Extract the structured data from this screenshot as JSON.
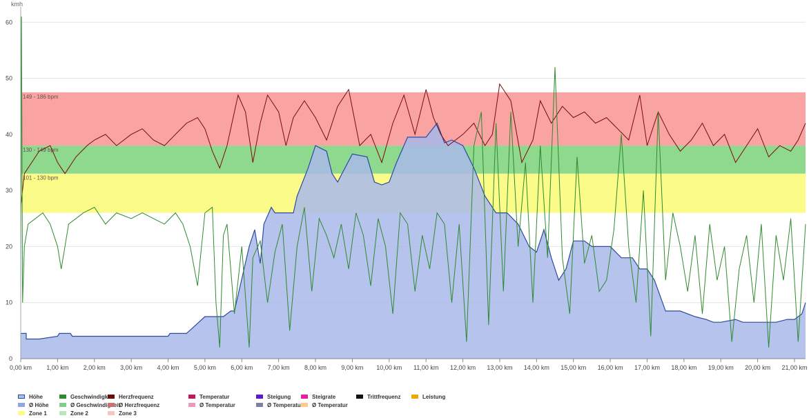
{
  "chart_data": {
    "type": "area",
    "ylabel_unit": "kmh",
    "ylim": [
      0,
      62
    ],
    "xlim": [
      0,
      21.3
    ],
    "y_ticks": [
      "0",
      "10",
      "20",
      "30",
      "40",
      "50",
      "60"
    ],
    "x_ticks": [
      "0,00 km",
      "1,00 km",
      "2,00 km",
      "3,00 km",
      "4,00 km",
      "5,00 km",
      "6,00 km",
      "7,00 km",
      "8,00 km",
      "9,00 km",
      "10,00 km",
      "11,00 km",
      "12,00 km",
      "13,00 km",
      "14,00 km",
      "15,00 km",
      "16,00 km",
      "17,00 km",
      "18,00 km",
      "19,00 km",
      "20,00 km",
      "21,00 km"
    ],
    "zones": [
      {
        "label": "101 - 130 bpm",
        "from": 26,
        "to": 33,
        "color": "#fbfb8a"
      },
      {
        "label": "130 - 149 bpm",
        "from": 33,
        "to": 38,
        "color": "#8fd98f"
      },
      {
        "label": "149 - 186 bpm",
        "from": 38,
        "to": 47.5,
        "color": "#f9a3a3"
      }
    ],
    "series": [
      {
        "name": "Höhe",
        "kind": "area",
        "color": "#a8b8ea",
        "stroke": "#2c4aa0",
        "x": [
          0,
          0.15,
          0.15,
          0.5,
          1.0,
          1.05,
          1.35,
          1.4,
          2.0,
          3.0,
          4.0,
          4.05,
          4.5,
          4.75,
          5.0,
          5.5,
          5.7,
          5.8,
          6.2,
          6.35,
          6.5,
          6.6,
          6.8,
          6.9,
          7.2,
          7.4,
          7.5,
          7.8,
          8.0,
          8.3,
          8.45,
          8.6,
          8.8,
          9.0,
          9.4,
          9.6,
          9.8,
          10.0,
          10.2,
          10.5,
          10.8,
          11.0,
          11.3,
          11.5,
          11.7,
          12.0,
          12.3,
          12.6,
          12.9,
          13.2,
          13.5,
          13.8,
          14.0,
          14.2,
          14.4,
          14.6,
          14.8,
          15.0,
          15.3,
          15.5,
          15.6,
          16.0,
          16.3,
          16.6,
          16.8,
          17.0,
          17.2,
          17.5,
          17.7,
          17.9,
          18.3,
          18.6,
          18.8,
          19.0,
          19.4,
          19.6,
          19.8,
          20.0,
          20.5,
          20.8,
          21.0,
          21.2,
          21.3
        ],
        "y": [
          4.5,
          4.5,
          3.5,
          3.5,
          4,
          4.5,
          4.5,
          4,
          4,
          4,
          4,
          4.5,
          4.5,
          6,
          7.5,
          7.5,
          8.5,
          8.5,
          20,
          23,
          17,
          24,
          27,
          26,
          26,
          26,
          29,
          34,
          38,
          37,
          33,
          31.5,
          34,
          36.5,
          36,
          31.5,
          31,
          31.5,
          35,
          39.5,
          39.5,
          39.5,
          42,
          38.5,
          39,
          38,
          34,
          29,
          26,
          26,
          24,
          20,
          19,
          23,
          18,
          14,
          16,
          21,
          21,
          20,
          20,
          20,
          18,
          18,
          16,
          16,
          14,
          8.5,
          8.5,
          8.5,
          7.5,
          7,
          6.5,
          6.5,
          7,
          6.5,
          6.5,
          6.5,
          6.5,
          7,
          7,
          8,
          10
        ]
      },
      {
        "name": "Herzfrequenz",
        "kind": "line",
        "color": "#7a0a0a",
        "x": [
          0,
          0.1,
          0.3,
          0.5,
          0.8,
          1.0,
          1.2,
          1.5,
          1.8,
          2.0,
          2.3,
          2.6,
          3.0,
          3.3,
          3.6,
          3.9,
          4.2,
          4.5,
          4.8,
          5.0,
          5.2,
          5.4,
          5.6,
          5.9,
          6.1,
          6.3,
          6.5,
          6.7,
          7.0,
          7.2,
          7.4,
          7.7,
          8.0,
          8.3,
          8.6,
          8.9,
          9.2,
          9.5,
          9.8,
          10.1,
          10.4,
          10.7,
          11.0,
          11.2,
          11.4,
          11.6,
          11.8,
          12.0,
          12.3,
          12.6,
          12.8,
          13.0,
          13.3,
          13.6,
          13.9,
          14.1,
          14.4,
          14.7,
          15.0,
          15.3,
          15.6,
          15.9,
          16.2,
          16.5,
          16.8,
          17.0,
          17.3,
          17.6,
          17.9,
          18.2,
          18.5,
          18.8,
          19.1,
          19.4,
          19.7,
          20.0,
          20.3,
          20.6,
          20.9,
          21.1,
          21.3
        ],
        "y": [
          27,
          33,
          35,
          37,
          38,
          35,
          33,
          36,
          38,
          39,
          40,
          38,
          40,
          41,
          39,
          38,
          40,
          42,
          43,
          41,
          37,
          34,
          38,
          47,
          44,
          35,
          42,
          47,
          44,
          38,
          43,
          46,
          43,
          39,
          45,
          48,
          38,
          40,
          35,
          42,
          47,
          40,
          48,
          43,
          40,
          38,
          39,
          40,
          42,
          38,
          40,
          49,
          46,
          35,
          39,
          46,
          42,
          45,
          43,
          44,
          42,
          43,
          41,
          39,
          47,
          38,
          44,
          40,
          37,
          39,
          42,
          38,
          40,
          35,
          38,
          41,
          36,
          38,
          37,
          39,
          42
        ]
      },
      {
        "name": "Geschwindigkeit",
        "kind": "line",
        "color": "#2f8a2f",
        "x": [
          0,
          0.02,
          0.05,
          0.1,
          0.2,
          0.4,
          0.6,
          0.8,
          1.0,
          1.1,
          1.2,
          1.3,
          1.5,
          1.7,
          2.0,
          2.3,
          2.6,
          3.0,
          3.3,
          3.6,
          3.9,
          4.2,
          4.4,
          4.6,
          4.8,
          5.0,
          5.2,
          5.3,
          5.4,
          5.5,
          5.6,
          5.8,
          6.0,
          6.2,
          6.3,
          6.5,
          6.7,
          6.9,
          7.1,
          7.3,
          7.5,
          7.7,
          7.9,
          8.1,
          8.3,
          8.5,
          8.7,
          8.9,
          9.1,
          9.3,
          9.5,
          9.7,
          9.9,
          10.1,
          10.3,
          10.5,
          10.7,
          10.9,
          11.1,
          11.3,
          11.5,
          11.7,
          11.9,
          12.1,
          12.3,
          12.5,
          12.7,
          12.9,
          13.1,
          13.3,
          13.5,
          13.7,
          13.9,
          14.1,
          14.3,
          14.5,
          14.7,
          14.9,
          15.1,
          15.3,
          15.5,
          15.7,
          15.9,
          16.1,
          16.3,
          16.5,
          16.7,
          16.9,
          17.1,
          17.3,
          17.5,
          17.7,
          17.9,
          18.1,
          18.3,
          18.5,
          18.7,
          18.9,
          19.1,
          19.3,
          19.5,
          19.7,
          19.9,
          20.1,
          20.3,
          20.5,
          20.7,
          20.9,
          21.1,
          21.3
        ],
        "y": [
          10,
          61,
          10,
          20,
          24,
          25,
          26,
          24,
          20,
          16,
          20,
          24,
          25,
          26,
          27,
          24,
          26,
          25,
          26,
          25,
          24,
          26,
          24,
          20,
          13,
          26,
          27,
          10,
          2,
          22,
          24,
          8,
          20,
          2,
          18,
          21,
          10,
          19,
          24,
          5,
          20,
          27,
          12,
          25,
          22,
          18,
          24,
          16,
          26,
          22,
          13,
          25,
          20,
          8,
          26,
          24,
          12,
          22,
          16,
          26,
          24,
          10,
          24,
          3,
          38,
          44,
          6,
          42,
          12,
          44,
          20,
          35,
          10,
          38,
          18,
          52,
          18,
          8,
          36,
          17,
          22,
          12,
          14,
          23,
          40,
          20,
          10,
          30,
          4,
          44,
          14,
          26,
          20,
          12,
          22,
          8,
          24,
          14,
          20,
          3,
          16,
          22,
          10,
          24,
          2,
          22,
          14,
          25,
          3,
          24
        ]
      }
    ],
    "legend": [
      {
        "label": "Höhe",
        "color": "#a8c0ea",
        "border": "#2c4aa0"
      },
      {
        "label": "Geschwindigkeit",
        "color": "#2f8a2f"
      },
      {
        "label": "Herzfrequenz",
        "color": "#6b0a0a"
      },
      {
        "label": "Temperatur",
        "color": "#c2185b"
      },
      {
        "label": "Steigung",
        "color": "#5b17c9"
      },
      {
        "label": "Steigrate",
        "color": "#e91e9c"
      },
      {
        "label": "Trittfrequenz",
        "color": "#111111"
      },
      {
        "label": "Leistung",
        "color": "#f0a800"
      },
      {
        "label": "Ø Höhe",
        "color": "#8fa6e0"
      },
      {
        "label": "Ø Geschwindigkeit",
        "color": "#7fcf8f"
      },
      {
        "label": "Ø Herzfrequenz",
        "color": "#c97070"
      },
      {
        "label": "Ø Temperatur",
        "color": "#e89bb8"
      },
      {
        "label": "Ø Temperatur",
        "color": "#7f7f9f"
      },
      {
        "label": "Ø Temperatur",
        "color": "#ffc98a"
      },
      {
        "label": "Zone 1",
        "color": "#fbfb8a"
      },
      {
        "label": "Zone 2",
        "color": "#b9e7b9"
      },
      {
        "label": "Zone 3",
        "color": "#f4c6c6"
      }
    ]
  }
}
